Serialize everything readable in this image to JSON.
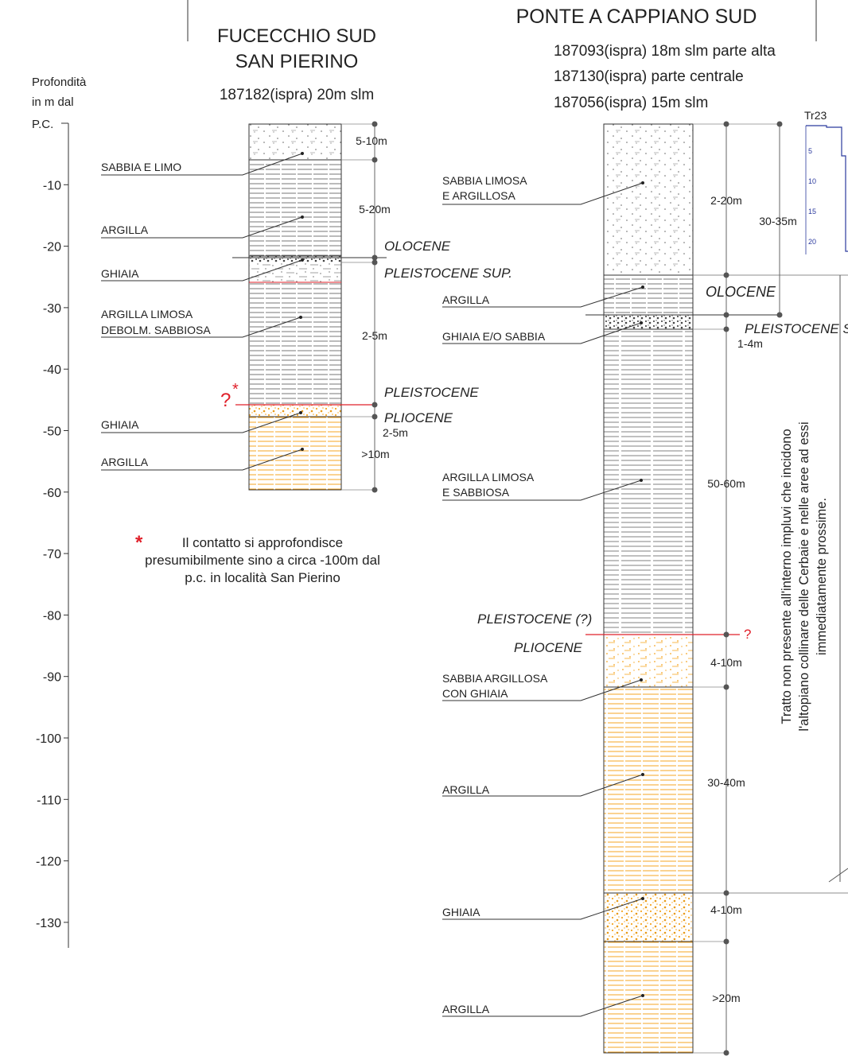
{
  "depth_axis": {
    "label_lines": [
      "Profondità",
      "in m dal",
      "P.C."
    ],
    "ticks": [
      "-10",
      "-20",
      "-30",
      "-40",
      "-50",
      "-60",
      "-70",
      "-80",
      "-90",
      "-100",
      "-110",
      "-120",
      "-130"
    ]
  },
  "column_fucecchio": {
    "title_lines": [
      "FUCECCHIO SUD",
      "SAN PIERINO"
    ],
    "subtitle": "187182(ispra) 20m slm",
    "layer_labels": [
      "SABBIA E LIMO",
      "ARGILLA",
      "GHIAIA",
      "ARGILLA LIMOSA",
      "DEBOLM. SABBIOSA",
      "GHIAIA",
      "ARGILLA"
    ],
    "thickness_labels": [
      "5-10m",
      "5-20m",
      "2-5m",
      "2-5m",
      ">10m"
    ],
    "epoch_labels": [
      "OLOCENE",
      "PLEISTOCENE SUP.",
      "PLEISTOCENE",
      "PLIOCENE"
    ],
    "uncertain_marker": "?",
    "asterisk": "*"
  },
  "note": {
    "star": "*",
    "text": "Il contatto si approfondisce presumibilmente sino a circa -100m dal p.c. in località San Pierino"
  },
  "column_ponte": {
    "title": "PONTE A CAPPIANO SUD",
    "subtitle_lines": [
      "187093(ispra) 18m slm parte alta",
      "187130(ispra) parte centrale",
      "187056(ispra) 15m slm"
    ],
    "layer_labels": [
      "SABBIA LIMOSA",
      "E ARGILLOSA",
      "ARGILLA",
      "GHIAIA E/O SABBIA",
      "ARGILLA LIMOSA",
      "E SABBIOSA",
      "SABBIA ARGILLOSA",
      "CON GHIAIA",
      "ARGILLA",
      "GHIAIA",
      "ARGILLA"
    ],
    "thickness_labels": [
      "2-20m",
      "30-35m",
      "1-4m",
      "50-60m",
      "4-10m",
      "30-40m",
      "4-10m",
      ">20m"
    ],
    "epoch_labels": [
      "OLOCENE",
      "PLEISTOCENE S",
      "PLEISTOCENE (?)",
      "PLIOCENE"
    ],
    "uncertain_marker": "?",
    "side_note_lines": [
      "Tratto non presente all'interno impluvi che incidono",
      "l'altopiano collinare delle Cerbaie e nelle aree ad essi",
      "immediatamente prossime."
    ]
  },
  "inset": {
    "title": "Tr23",
    "ticks": [
      "5",
      "10",
      "15",
      "20"
    ]
  },
  "colors": {
    "line": "#333333",
    "pliocene_fill": "#f5a623",
    "boundary_red": "#e0202a",
    "gravel": "#555555",
    "inset_blue": "#2b3a9e"
  }
}
